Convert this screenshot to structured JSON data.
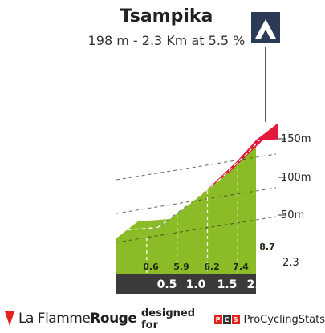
{
  "header": {
    "title": "Tsampika",
    "subtitle": "198 m - 2.3 Km at 5.5 %"
  },
  "icon": "mountain-climb-icon",
  "chart_data": {
    "type": "area",
    "title": "Tsampika",
    "subtitle": "198 m - 2.3 Km at 5.5 %",
    "distance_labels": [
      "0.5",
      "1.0",
      "1.5",
      "2.0"
    ],
    "end_distance_label": "2.3",
    "altitude_ticks": [
      "50m",
      "100m",
      "150m"
    ],
    "segments": [
      {
        "gradient": "0.6",
        "color": "#8cbb28"
      },
      {
        "gradient": "5.9",
        "color": "#2a5b84"
      },
      {
        "gradient": "6.2",
        "color": "#e2193b"
      },
      {
        "gradient": "7.4",
        "color": "#e2193b"
      },
      {
        "gradient": "8.7",
        "color": "#e2193b"
      }
    ],
    "segment_distance_km": [
      0.5,
      0.5,
      0.5,
      0.5,
      0.3
    ],
    "altitude_points": [
      {
        "km": 0.0,
        "alt": 0
      },
      {
        "km": 0.5,
        "alt": 3
      },
      {
        "km": 1.0,
        "alt": 32
      },
      {
        "km": 1.5,
        "alt": 63
      },
      {
        "km": 2.0,
        "alt": 100
      },
      {
        "km": 2.3,
        "alt": 126
      }
    ],
    "colors": {
      "ground": "#8cbb28",
      "band_low": "#8cbb28",
      "band_medium": "#2a5b84",
      "band_high": "#e2193b",
      "distance_bar": "#3a3a3a",
      "side_wall": "#a39e8f"
    }
  },
  "footer": {
    "brand_prefix": "La Flamme",
    "brand_suffix": "Rouge",
    "designed_by": "designed for",
    "pcs_letters": [
      "P",
      "C",
      "S"
    ],
    "pcs_name": "ProCyclingStats"
  }
}
